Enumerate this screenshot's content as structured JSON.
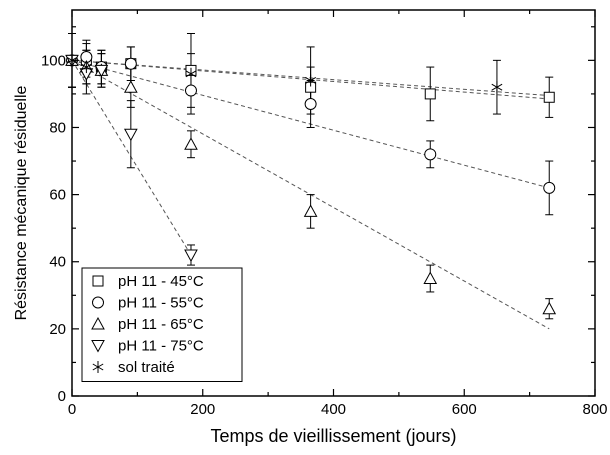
{
  "chart_data": {
    "type": "scatter",
    "title": "",
    "xlabel": "Temps de vieillissement (jours)",
    "ylabel": "Résistance mécanique résiduelle",
    "xlim": [
      0,
      800
    ],
    "ylim": [
      0,
      115
    ],
    "x_ticks": [
      0,
      200,
      400,
      600,
      800
    ],
    "y_ticks": [
      0,
      20,
      40,
      60,
      80,
      100
    ],
    "grid": false,
    "legend_position": "bottom-left",
    "series": [
      {
        "name": "pH 11 - 45°C",
        "marker": "square",
        "points": [
          {
            "x": 0,
            "y": 100,
            "err": 8
          },
          {
            "x": 22,
            "y": 100,
            "err": 5
          },
          {
            "x": 45,
            "y": 98,
            "err": 5
          },
          {
            "x": 90,
            "y": 99,
            "err": 5
          },
          {
            "x": 182,
            "y": 97,
            "err": 5
          },
          {
            "x": 365,
            "y": 92,
            "err": 6
          },
          {
            "x": 548,
            "y": 90,
            "err": 8
          },
          {
            "x": 730,
            "y": 89,
            "err": 6
          }
        ],
        "fit": [
          [
            0,
            100
          ],
          [
            730,
            88.5
          ]
        ]
      },
      {
        "name": "pH 11 - 55°C",
        "marker": "circle",
        "points": [
          {
            "x": 0,
            "y": 100,
            "err": 8
          },
          {
            "x": 22,
            "y": 101,
            "err": 5
          },
          {
            "x": 45,
            "y": 98,
            "err": 5
          },
          {
            "x": 90,
            "y": 99,
            "err": 5
          },
          {
            "x": 182,
            "y": 91,
            "err": 5
          },
          {
            "x": 365,
            "y": 87,
            "err": 7
          },
          {
            "x": 548,
            "y": 72,
            "err": 4
          },
          {
            "x": 730,
            "y": 62,
            "err": 8
          }
        ],
        "fit": [
          [
            0,
            100
          ],
          [
            730,
            62
          ]
        ]
      },
      {
        "name": "pH 11 - 65°C",
        "marker": "triangle-up",
        "points": [
          {
            "x": 0,
            "y": 100,
            "err": 8
          },
          {
            "x": 22,
            "y": 98,
            "err": 5
          },
          {
            "x": 45,
            "y": 97,
            "err": 5
          },
          {
            "x": 90,
            "y": 92,
            "err": 6
          },
          {
            "x": 182,
            "y": 75,
            "err": 4
          },
          {
            "x": 365,
            "y": 55,
            "err": 5
          },
          {
            "x": 548,
            "y": 35,
            "err": 4
          },
          {
            "x": 730,
            "y": 26,
            "err": 3
          }
        ],
        "fit": [
          [
            0,
            100
          ],
          [
            730,
            20
          ]
        ]
      },
      {
        "name": "pH 11 - 75°C",
        "marker": "triangle-down",
        "points": [
          {
            "x": 0,
            "y": 100,
            "err": 8
          },
          {
            "x": 22,
            "y": 96,
            "err": 6
          },
          {
            "x": 45,
            "y": 97,
            "err": 5
          },
          {
            "x": 90,
            "y": 78,
            "err": 10
          },
          {
            "x": 182,
            "y": 42,
            "err": 3
          }
        ],
        "fit": [
          [
            0,
            100
          ],
          [
            182,
            42
          ]
        ]
      },
      {
        "name": "sol traité",
        "marker": "asterisk",
        "points": [
          {
            "x": 0,
            "y": 100,
            "err": 8
          },
          {
            "x": 22,
            "y": 98,
            "err": 5
          },
          {
            "x": 182,
            "y": 96,
            "err": 12
          },
          {
            "x": 365,
            "y": 94,
            "err": 10
          },
          {
            "x": 650,
            "y": 92,
            "err": 8
          }
        ],
        "fit": [
          [
            0,
            100
          ],
          [
            730,
            89.5
          ]
        ]
      }
    ]
  }
}
